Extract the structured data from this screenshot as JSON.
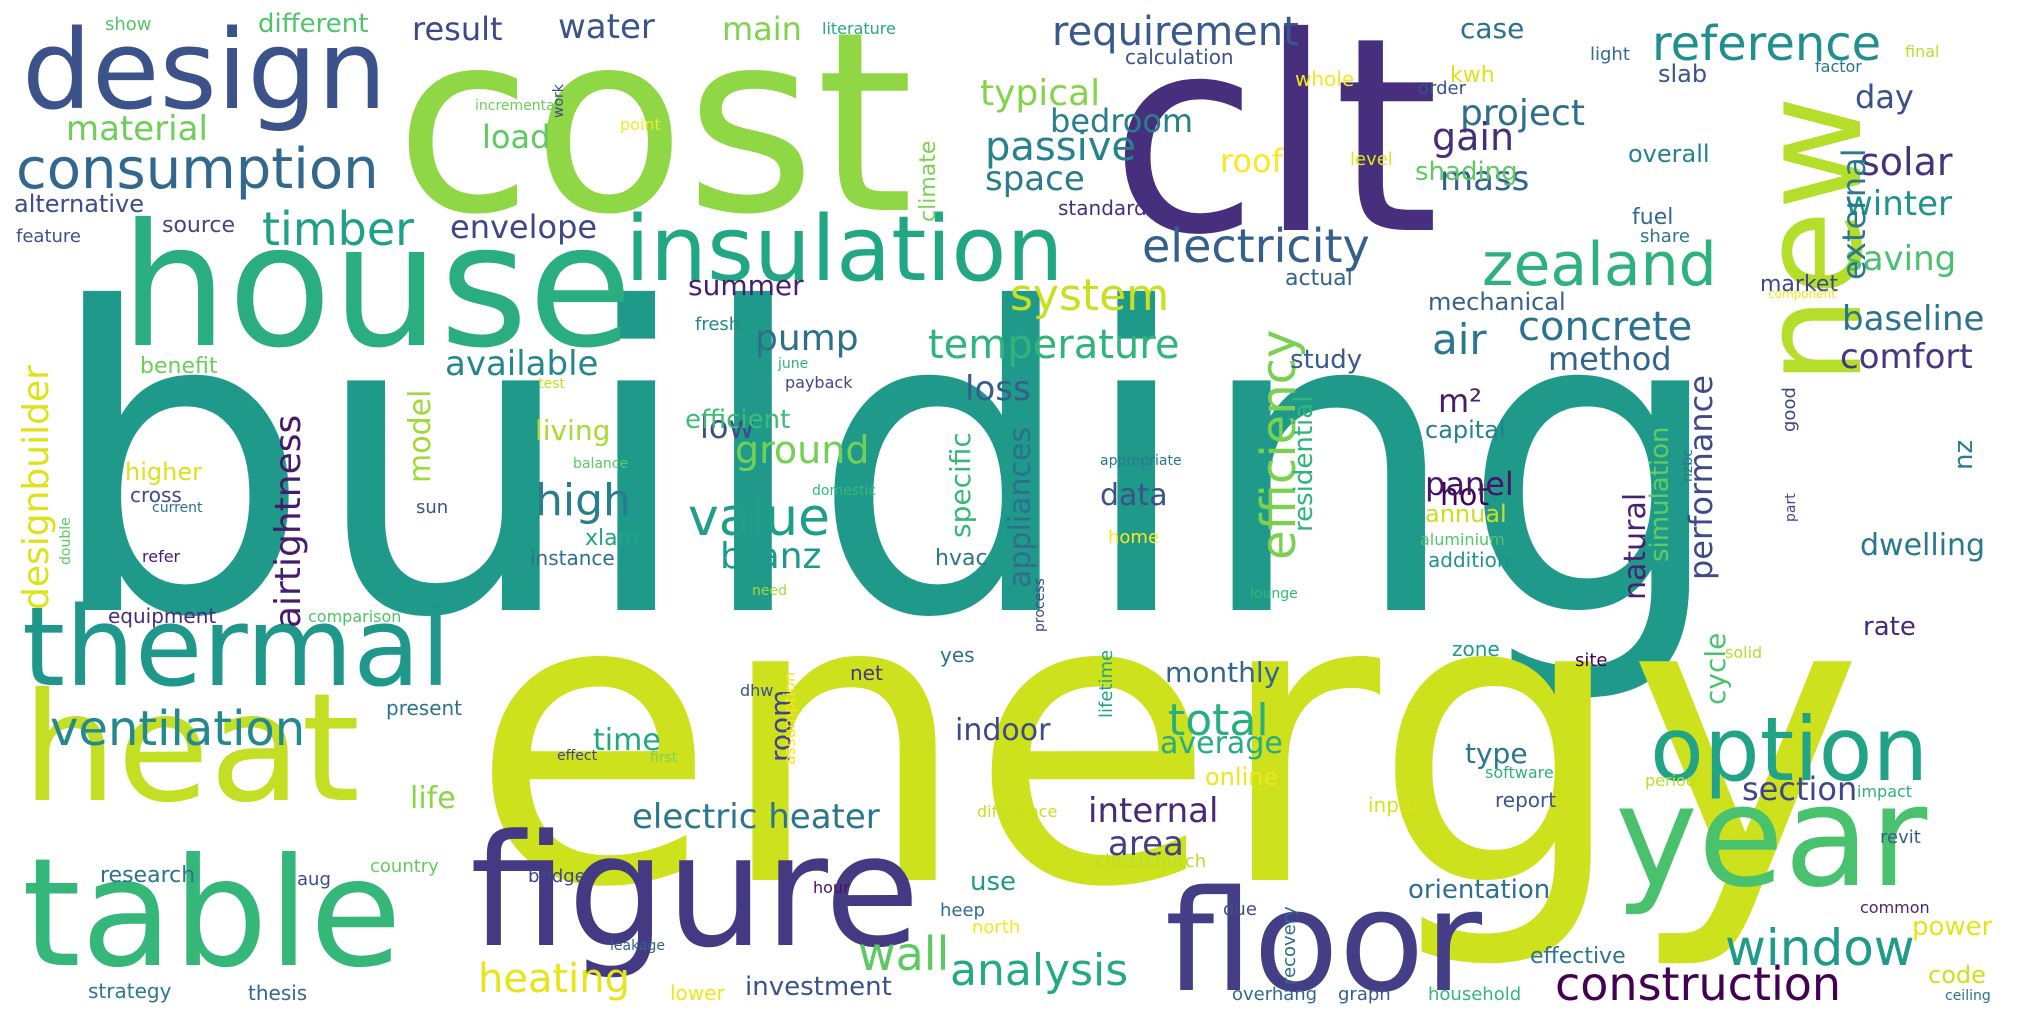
{
  "words": [
    {
      "text": "building",
      "color": "#1f9a8a"
    },
    {
      "text": "energy",
      "color": "#cde11d"
    },
    {
      "text": "cost",
      "color": "#8fd744"
    },
    {
      "text": "clt",
      "color": "#472f7d"
    },
    {
      "text": "house",
      "color": "#2aae80"
    },
    {
      "text": "design",
      "color": "#3b528b"
    },
    {
      "text": "heat",
      "color": "#c2df23"
    },
    {
      "text": "thermal",
      "color": "#1f988b"
    },
    {
      "text": "table",
      "color": "#35b779"
    },
    {
      "text": "figure",
      "color": "#443a83"
    },
    {
      "text": "year",
      "color": "#4ac16d"
    },
    {
      "text": "floor",
      "color": "#433e85"
    },
    {
      "text": "new",
      "color": "#b5de2b"
    },
    {
      "text": "insulation",
      "color": "#22a785"
    },
    {
      "text": "option",
      "color": "#20a386"
    },
    {
      "text": "consumption",
      "color": "#31688e"
    },
    {
      "text": "reference",
      "color": "#218f8d"
    },
    {
      "text": "zealand",
      "color": "#2db27d"
    },
    {
      "text": "electricity",
      "color": "#355f8d"
    },
    {
      "text": "requirement",
      "color": "#38598c"
    },
    {
      "text": "ventilation",
      "color": "#23898e"
    },
    {
      "text": "construction",
      "color": "#440154"
    },
    {
      "text": "window",
      "color": "#1e9c89"
    },
    {
      "text": "value",
      "color": "#1f9e89"
    },
    {
      "text": "timber",
      "color": "#1fa088"
    },
    {
      "text": "wall",
      "color": "#5ec962"
    },
    {
      "text": "analysis",
      "color": "#24aa83"
    },
    {
      "text": "passive",
      "color": "#26828e"
    },
    {
      "text": "system",
      "color": "#c8e020"
    },
    {
      "text": "temperature",
      "color": "#2fb47c"
    },
    {
      "text": "heating",
      "color": "#e7e419"
    },
    {
      "text": "total",
      "color": "#29af7f"
    },
    {
      "text": "efficiency",
      "color": "#7ad151"
    },
    {
      "text": "concrete",
      "color": "#2c728e"
    },
    {
      "text": "high",
      "color": "#287d8e"
    },
    {
      "text": "figure",
      "color": "#443a83"
    },
    {
      "text": "air",
      "color": "#2a788e"
    },
    {
      "text": "electric heater",
      "color": "#2a768e"
    },
    {
      "text": "airtightness",
      "color": "#481a6c"
    },
    {
      "text": "designbuilder",
      "color": "#dde318"
    },
    {
      "text": "material",
      "color": "#6ece58"
    },
    {
      "text": "typical",
      "color": "#84d44b"
    },
    {
      "text": "project",
      "color": "#2e6f8e"
    },
    {
      "text": "bedroom",
      "color": "#277f8e"
    },
    {
      "text": "mass",
      "color": "#33638d"
    },
    {
      "text": "solar",
      "color": "#46337e"
    },
    {
      "text": "winter",
      "color": "#1f948c"
    },
    {
      "text": "saving",
      "color": "#4ac16d"
    },
    {
      "text": "baseline",
      "color": "#2c738e"
    },
    {
      "text": "comfort",
      "color": "#453781"
    },
    {
      "text": "external",
      "color": "#2a788e"
    },
    {
      "text": "performance",
      "color": "#3e4a89"
    },
    {
      "text": "internal",
      "color": "#482878"
    },
    {
      "text": "area",
      "color": "#424086"
    },
    {
      "text": "average",
      "color": "#26ad81"
    },
    {
      "text": "monthly",
      "color": "#31668e"
    },
    {
      "text": "ground",
      "color": "#74d055"
    },
    {
      "text": "branz",
      "color": "#1f9a8a"
    },
    {
      "text": "pump",
      "color": "#2d708e"
    },
    {
      "text": "loss",
      "color": "#355e8d"
    },
    {
      "text": "envelope",
      "color": "#3f4788"
    },
    {
      "text": "available",
      "color": "#24878e"
    },
    {
      "text": "load",
      "color": "#5ec962"
    },
    {
      "text": "water",
      "color": "#3a548c"
    },
    {
      "text": "result",
      "color": "#3e4989"
    },
    {
      "text": "main",
      "color": "#7fd34e"
    },
    {
      "text": "case",
      "color": "#2c718e"
    },
    {
      "text": "space",
      "color": "#297b8e"
    },
    {
      "text": "gain",
      "color": "#472d7b"
    },
    {
      "text": "roof",
      "color": "#fde725"
    },
    {
      "text": "day",
      "color": "#3b518b"
    },
    {
      "text": "summer",
      "color": "#481f70"
    },
    {
      "text": "source",
      "color": "#404688"
    },
    {
      "text": "alternative",
      "color": "#3d4d8a"
    },
    {
      "text": "feature",
      "color": "#3b528b"
    },
    {
      "text": "method",
      "color": "#32658e"
    },
    {
      "text": "m²",
      "color": "#481b6d"
    },
    {
      "text": "hot",
      "color": "#440154"
    },
    {
      "text": "panel",
      "color": "#481467"
    },
    {
      "text": "data",
      "color": "#3b528b"
    },
    {
      "text": "model",
      "color": "#a0da39"
    },
    {
      "text": "low",
      "color": "#3d4d8a"
    },
    {
      "text": "efficient",
      "color": "#3dbc74"
    },
    {
      "text": "living",
      "color": "#a8db34"
    },
    {
      "text": "appliances",
      "color": "#2e6e8e"
    },
    {
      "text": "specific",
      "color": "#37b878"
    },
    {
      "text": "mechanical",
      "color": "#33628d"
    },
    {
      "text": "study",
      "color": "#365c8d"
    },
    {
      "text": "natural",
      "color": "#482173"
    },
    {
      "text": "simulation",
      "color": "#65cb5e"
    },
    {
      "text": "residential",
      "color": "#2fb47c"
    },
    {
      "text": "dwelling",
      "color": "#2a788e"
    },
    {
      "text": "rate",
      "color": "#482878"
    },
    {
      "text": "nz",
      "color": "#287c8e"
    },
    {
      "text": "cycle",
      "color": "#4cc26c"
    },
    {
      "text": "section",
      "color": "#3f4788"
    },
    {
      "text": "type",
      "color": "#2a778e"
    },
    {
      "text": "room",
      "color": "#414487"
    },
    {
      "text": "time",
      "color": "#22a884"
    },
    {
      "text": "indoor",
      "color": "#3e4989"
    },
    {
      "text": "life",
      "color": "#8bd646"
    },
    {
      "text": "online",
      "color": "#f1e51d"
    },
    {
      "text": "orientation",
      "color": "#2d718e"
    },
    {
      "text": "use",
      "color": "#1f998a"
    },
    {
      "text": "heep",
      "color": "#2e6f8e"
    },
    {
      "text": "power",
      "color": "#e5e419"
    },
    {
      "text": "code",
      "color": "#cde11d"
    },
    {
      "text": "investment",
      "color": "#3b528b"
    },
    {
      "text": "effective",
      "color": "#2c738e"
    },
    {
      "text": "overhang",
      "color": "#31688e"
    },
    {
      "text": "household",
      "color": "#32b67a"
    },
    {
      "text": "annual",
      "color": "#c8e020"
    },
    {
      "text": "addition",
      "color": "#1f948c"
    },
    {
      "text": "capital",
      "color": "#26818e"
    },
    {
      "text": "hvac",
      "color": "#2b758e"
    },
    {
      "text": "xlam",
      "color": "#20a486"
    },
    {
      "text": "instance",
      "color": "#2d708e"
    },
    {
      "text": "higher",
      "color": "#dae319"
    },
    {
      "text": "cross",
      "color": "#3e4a89"
    },
    {
      "text": "benefit",
      "color": "#6ccd5a"
    },
    {
      "text": "different",
      "color": "#50c46a"
    },
    {
      "text": "show",
      "color": "#52c569"
    },
    {
      "text": "climate",
      "color": "#7cd250"
    },
    {
      "text": "shading",
      "color": "#5ec962"
    },
    {
      "text": "overall",
      "color": "#26828e"
    },
    {
      "text": "fuel",
      "color": "#31688e"
    },
    {
      "text": "share",
      "color": "#2a788e"
    },
    {
      "text": "market",
      "color": "#3f4889"
    },
    {
      "text": "actual",
      "color": "#32648e"
    },
    {
      "text": "standard",
      "color": "#46307e"
    },
    {
      "text": "calculation",
      "color": "#3a538b"
    },
    {
      "text": "slab",
      "color": "#3a548c"
    },
    {
      "text": "kwh",
      "color": "#dde318"
    },
    {
      "text": "light",
      "color": "#2f6b8e"
    },
    {
      "text": "order",
      "color": "#3b518b"
    },
    {
      "text": "whole",
      "color": "#f6e620"
    },
    {
      "text": "level",
      "color": "#e2e418"
    },
    {
      "text": "factor",
      "color": "#2b748e"
    },
    {
      "text": "final",
      "color": "#b8de29"
    },
    {
      "text": "literature",
      "color": "#23a983"
    },
    {
      "text": "incremental",
      "color": "#6ccd5a"
    },
    {
      "text": "point",
      "color": "#f8e621"
    },
    {
      "text": "work",
      "color": "#3e4a89"
    },
    {
      "text": "fresh",
      "color": "#24878e"
    },
    {
      "text": "june",
      "color": "#2fb47c"
    },
    {
      "text": "test",
      "color": "#c2df23"
    },
    {
      "text": "payback",
      "color": "#404588"
    },
    {
      "text": "balance",
      "color": "#5cc863"
    },
    {
      "text": "domestic",
      "color": "#35b779"
    },
    {
      "text": "current",
      "color": "#2d718e"
    },
    {
      "text": "sun",
      "color": "#3b528b"
    },
    {
      "text": "double",
      "color": "#5ec962"
    },
    {
      "text": "refer",
      "color": "#481a6c"
    },
    {
      "text": "equipment",
      "color": "#472c7a"
    },
    {
      "text": "comparison",
      "color": "#4ec36b"
    },
    {
      "text": "need",
      "color": "#a2da37"
    },
    {
      "text": "process",
      "color": "#3e4989"
    },
    {
      "text": "lounge",
      "color": "#36b677"
    },
    {
      "text": "aluminium",
      "color": "#54c568"
    },
    {
      "text": "appropriate",
      "color": "#2a788e"
    },
    {
      "text": "home",
      "color": "#fde725"
    },
    {
      "text": "lifetime",
      "color": "#20a386"
    },
    {
      "text": "yes",
      "color": "#2d708e"
    },
    {
      "text": "net",
      "color": "#453781"
    },
    {
      "text": "dhw",
      "color": "#3b518b"
    },
    {
      "text": "assumption",
      "color": "#f8e621"
    },
    {
      "text": "effect",
      "color": "#3e4989"
    },
    {
      "text": "first",
      "color": "#7ad151"
    },
    {
      "text": "present",
      "color": "#2c728e"
    },
    {
      "text": "zone",
      "color": "#1e9b8a"
    },
    {
      "text": "site",
      "color": "#440154"
    },
    {
      "text": "solid",
      "color": "#b5de2b"
    },
    {
      "text": "software",
      "color": "#2db27d"
    },
    {
      "text": "difference",
      "color": "#c8e020"
    },
    {
      "text": "christchurch",
      "color": "#b5de2b"
    },
    {
      "text": "input",
      "color": "#d8e219"
    },
    {
      "text": "report",
      "color": "#39568c"
    },
    {
      "text": "period",
      "color": "#bddf26"
    },
    {
      "text": "impact",
      "color": "#2db27d"
    },
    {
      "text": "revit",
      "color": "#365d8d"
    },
    {
      "text": "common",
      "color": "#482475"
    },
    {
      "text": "due",
      "color": "#3d4e8a"
    },
    {
      "text": "north",
      "color": "#f8e621"
    },
    {
      "text": "recovery",
      "color": "#2e6d8e"
    },
    {
      "text": "hour",
      "color": "#471063"
    },
    {
      "text": "bridge",
      "color": "#3f4788"
    },
    {
      "text": "leakage",
      "color": "#33638d"
    },
    {
      "text": "lower",
      "color": "#f1e51d"
    },
    {
      "text": "graph",
      "color": "#365c8d"
    },
    {
      "text": "ceiling",
      "color": "#2c728e"
    },
    {
      "text": "thesis",
      "color": "#31688e"
    },
    {
      "text": "strategy",
      "color": "#2a788e"
    },
    {
      "text": "research",
      "color": "#2c728e"
    },
    {
      "text": "aug",
      "color": "#3d4e8a"
    },
    {
      "text": "country",
      "color": "#65cb5e"
    },
    {
      "text": "nzbc",
      "color": "#2b758e"
    },
    {
      "text": "part",
      "color": "#404688"
    },
    {
      "text": "good",
      "color": "#3f4889"
    },
    {
      "text": "component",
      "color": "#f1e51d"
    }
  ]
}
